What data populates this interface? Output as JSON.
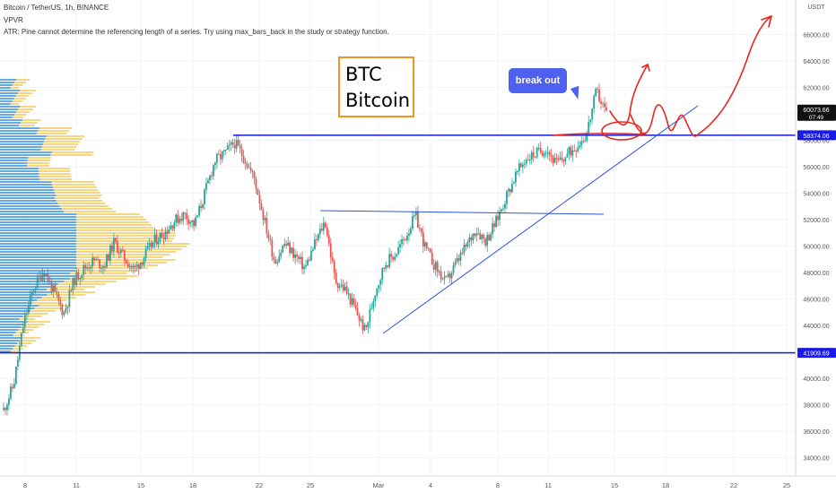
{
  "header": {
    "symbol_line": "Bitcoin / TetherUS, 1h, BINANCE",
    "indicator": "VPVR",
    "error": "ATR: Pine cannot determine the referencing length of a series. Try using max_bars_back in the study or strategy function."
  },
  "annotations": {
    "btc_line1": "BTC",
    "btc_line2": "Bitcoin",
    "callout": "break out"
  },
  "colors": {
    "up": "#26a69a",
    "down": "#ef5350",
    "level": "#1a1ae6",
    "trendline": "#2c52e0",
    "sketch": "#e8261c",
    "box_border": "#f2941f",
    "callout": "#4d60f0",
    "vp_up": "#f3c44f",
    "vp_down": "#2f8fd8"
  },
  "chart_data": {
    "type": "candlestick",
    "axis_currency": "USDT",
    "ylim": [
      32600,
      68600
    ],
    "ytick_labels": [
      "34000.00",
      "36000.00",
      "38000.00",
      "40000.00",
      "42000.00",
      "44000.00",
      "46000.00",
      "48000.00",
      "50000.00",
      "52000.00",
      "54000.00",
      "56000.00",
      "58000.00",
      "60000.00",
      "62000.00",
      "64000.00",
      "66000.00"
    ],
    "xtick_labels": [
      "8",
      "11",
      "15",
      "18",
      "22",
      "25",
      "Mar",
      "4",
      "8",
      "11",
      "15",
      "18",
      "22",
      "25"
    ],
    "price_labels": [
      {
        "text": "60073.66",
        "sub": "07:49",
        "value": 60073.66
      },
      {
        "text": "58374.06",
        "value": 58374.06
      },
      {
        "text": "41909.69",
        "value": 41909.69
      }
    ],
    "horizontal_levels": [
      58374.06,
      41909.69
    ],
    "close_path": [
      [
        "8",
        37600
      ],
      [
        "8",
        39500
      ],
      [
        "8",
        44200
      ],
      [
        "8",
        46800
      ],
      [
        "8",
        48200
      ],
      [
        "8",
        46500
      ],
      [
        "11",
        44900
      ],
      [
        "11",
        47400
      ],
      [
        "11",
        48300
      ],
      [
        "11",
        48900
      ],
      [
        "11",
        48500
      ],
      [
        "11",
        50300
      ],
      [
        "15",
        49100
      ],
      [
        "15",
        48200
      ],
      [
        "15",
        49200
      ],
      [
        "15",
        50400
      ],
      [
        "15",
        51000
      ],
      [
        "18",
        51900
      ],
      [
        "18",
        52400
      ],
      [
        "18",
        51600
      ],
      [
        "18",
        53900
      ],
      [
        "18",
        56400
      ],
      [
        "18",
        57000
      ],
      [
        "22",
        57800
      ],
      [
        "22",
        56600
      ],
      [
        "22",
        55000
      ],
      [
        "22",
        51800
      ],
      [
        "22",
        48800
      ],
      [
        "22",
        50200
      ],
      [
        "25",
        49300
      ],
      [
        "25",
        48300
      ],
      [
        "25",
        50200
      ],
      [
        "25",
        51900
      ],
      [
        "25",
        47400
      ],
      [
        "25",
        46700
      ],
      [
        "Mar",
        45200
      ],
      [
        "Mar",
        43500
      ],
      [
        "Mar",
        46600
      ],
      [
        "Mar",
        48700
      ],
      [
        "Mar",
        49400
      ],
      [
        "4",
        50700
      ],
      [
        "4",
        52300
      ],
      [
        "4",
        49800
      ],
      [
        "4",
        48400
      ],
      [
        "4",
        47200
      ],
      [
        "4",
        48600
      ],
      [
        "8",
        49900
      ],
      [
        "8",
        51300
      ],
      [
        "8",
        50400
      ],
      [
        "8",
        51800
      ],
      [
        "8",
        53700
      ],
      [
        "8",
        55400
      ],
      [
        "11",
        56600
      ],
      [
        "11",
        57000
      ],
      [
        "11",
        57400
      ],
      [
        "11",
        56200
      ],
      [
        "11",
        56800
      ],
      [
        "11",
        57600
      ],
      [
        "15",
        58400
      ],
      [
        "15",
        61700
      ],
      [
        "15",
        60073.66
      ]
    ]
  }
}
